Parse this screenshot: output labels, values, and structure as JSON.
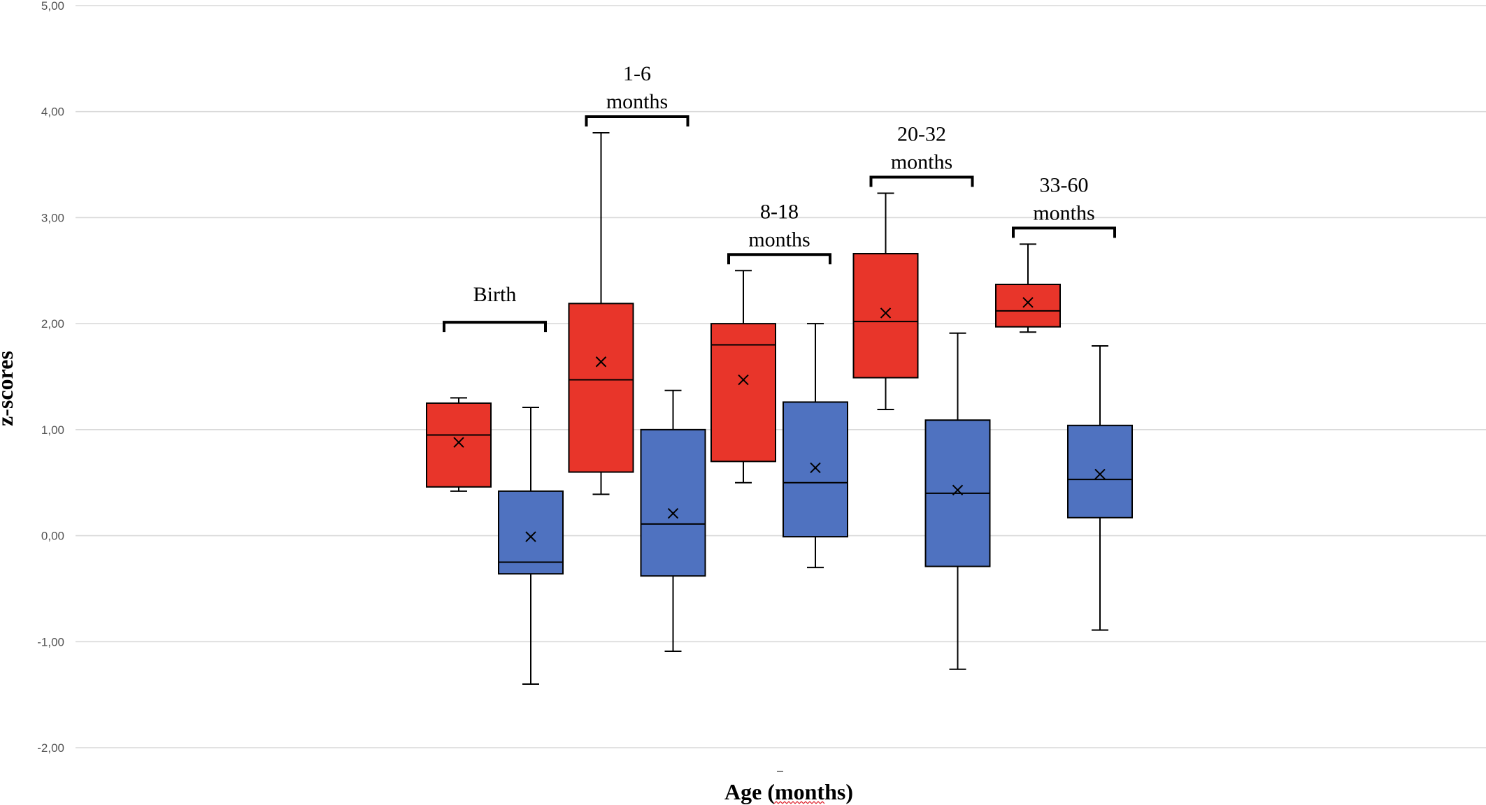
{
  "chart_data": {
    "type": "box",
    "title": "",
    "xlabel": "Age (months)",
    "ylabel": "z-scores",
    "ylim": [
      -2.0,
      5.0
    ],
    "y_ticks": [
      -2,
      -1,
      0,
      1,
      2,
      3,
      4,
      5
    ],
    "y_tick_labels": [
      "-2,00",
      "-1,00",
      "0,00",
      "1,00",
      "2,00",
      "3,00",
      "4,00",
      "5,00"
    ],
    "grid": true,
    "legend": "none",
    "colors": {
      "series_a": "#e8352a",
      "series_b": "#4f72c0"
    },
    "groups": [
      {
        "label": "Birth",
        "boxes": [
          {
            "series": "a",
            "min": 0.42,
            "q1": 0.46,
            "median": 0.95,
            "q3": 1.25,
            "max": 1.3,
            "mean": 0.88
          },
          {
            "series": "b",
            "min": -1.4,
            "q1": -0.36,
            "median": -0.25,
            "q3": 0.42,
            "max": 1.21,
            "mean": -0.01
          }
        ]
      },
      {
        "label": "1-6 months",
        "boxes": [
          {
            "series": "a",
            "min": 0.39,
            "q1": 0.6,
            "median": 1.47,
            "q3": 2.19,
            "max": 3.8,
            "mean": 1.64
          },
          {
            "series": "b",
            "min": -1.09,
            "q1": -0.38,
            "median": 0.11,
            "q3": 1.0,
            "max": 1.37,
            "mean": 0.21
          }
        ]
      },
      {
        "label": "8-18 months",
        "boxes": [
          {
            "series": "a",
            "min": 0.5,
            "q1": 0.7,
            "median": 1.8,
            "q3": 2.0,
            "max": 2.5,
            "mean": 1.47
          },
          {
            "series": "b",
            "min": -0.3,
            "q1": -0.01,
            "median": 0.5,
            "q3": 1.26,
            "max": 2.0,
            "mean": 0.64
          }
        ]
      },
      {
        "label": "20-32 months",
        "boxes": [
          {
            "series": "a",
            "min": 1.19,
            "q1": 1.49,
            "median": 2.02,
            "q3": 2.66,
            "max": 3.23,
            "mean": 2.1
          },
          {
            "series": "b",
            "min": -1.26,
            "q1": -0.29,
            "median": 0.4,
            "q3": 1.09,
            "max": 1.91,
            "mean": 0.43
          }
        ]
      },
      {
        "label": "33-60 months",
        "boxes": [
          {
            "series": "a",
            "min": 1.92,
            "q1": 1.97,
            "median": 2.12,
            "q3": 2.37,
            "max": 2.75,
            "mean": 2.2
          },
          {
            "series": "b",
            "min": -0.89,
            "q1": 0.17,
            "median": 0.53,
            "q3": 1.04,
            "max": 1.79,
            "mean": 0.58
          }
        ]
      }
    ]
  }
}
